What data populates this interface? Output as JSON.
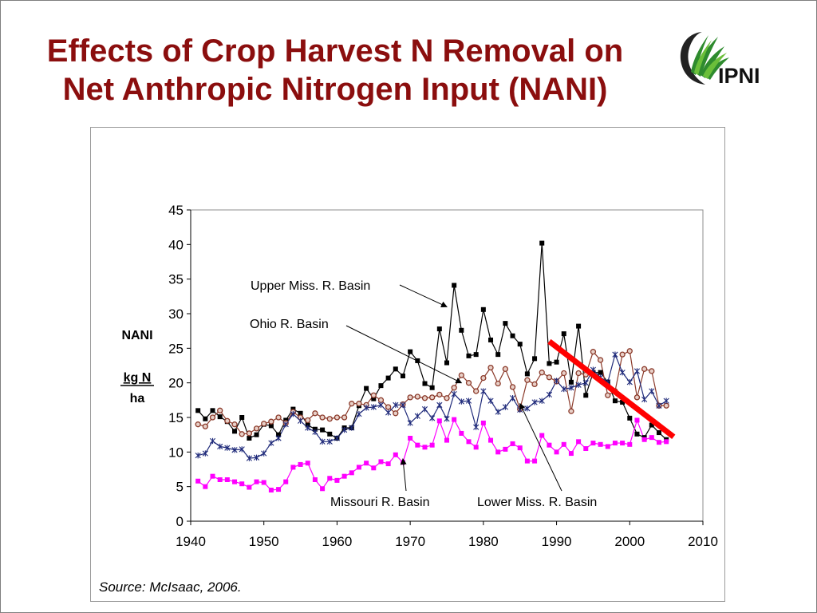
{
  "slide": {
    "title_line1": "Effects of Crop Harvest N Removal on",
    "title_line2": "Net Anthropic Nitrogen Input (NANI)",
    "logo_text": "IPNI",
    "source": "Source: McIsaac, 2006."
  },
  "colors": {
    "title": "#8b0e0e",
    "upper_miss": "#000000",
    "ohio": "#8b3a2a",
    "lower_miss": "#1f2a7a",
    "missouri": "#ff00ff",
    "trend": "#ff0000",
    "logo_green": "#2e8b2e"
  },
  "chart_data": {
    "type": "line",
    "ylabel_line1": "NANI",
    "ylabel_line2": "kg N",
    "ylabel_line3": "ha",
    "xlim": [
      1940,
      2010
    ],
    "ylim": [
      0,
      45
    ],
    "xticks": [
      1940,
      1950,
      1960,
      1970,
      1980,
      1990,
      2000,
      2010
    ],
    "yticks": [
      0,
      5,
      10,
      15,
      20,
      25,
      30,
      35,
      40,
      45
    ],
    "grid": false,
    "x": [
      1941,
      1942,
      1943,
      1944,
      1945,
      1946,
      1947,
      1948,
      1949,
      1950,
      1951,
      1952,
      1953,
      1954,
      1955,
      1956,
      1957,
      1958,
      1959,
      1960,
      1961,
      1962,
      1963,
      1964,
      1965,
      1966,
      1967,
      1968,
      1969,
      1970,
      1971,
      1972,
      1973,
      1974,
      1975,
      1976,
      1977,
      1978,
      1979,
      1980,
      1981,
      1982,
      1983,
      1984,
      1985,
      1986,
      1987,
      1988,
      1989,
      1990,
      1991,
      1992,
      1993,
      1994,
      1995,
      1996,
      1997,
      1998,
      1999,
      2000,
      2001,
      2002,
      2003,
      2004,
      2005
    ],
    "series": [
      {
        "name": "Upper Miss. R. Basin",
        "marker": "square",
        "values": [
          16,
          14.8,
          16,
          15.1,
          14.4,
          13,
          15,
          12,
          12.5,
          14,
          13.8,
          12.5,
          14.6,
          16.2,
          15.6,
          13.9,
          13.3,
          13.2,
          12.6,
          12,
          13.5,
          13.5,
          16.7,
          19.2,
          17.7,
          19.6,
          20.7,
          22,
          21,
          24.5,
          23.2,
          19.9,
          19.3,
          27.8,
          22.9,
          34.1,
          27.6,
          23.9,
          24.1,
          30.6,
          26.2,
          24.1,
          28.6,
          26.8,
          25.6,
          21.3,
          23.5,
          40.2,
          22.8,
          23,
          27.1,
          20.1,
          28.2,
          18.2,
          21.5,
          21.5,
          20.1,
          17.4,
          17.2,
          14.9,
          12.6,
          12.1,
          13.9,
          12.8,
          11.8
        ]
      },
      {
        "name": "Ohio R. Basin",
        "marker": "circle",
        "values": [
          14,
          13.7,
          15,
          16,
          14.5,
          14,
          12.6,
          12.7,
          13.4,
          14.1,
          14.4,
          15,
          14.2,
          15.8,
          15,
          14.6,
          15.6,
          15,
          14.8,
          15,
          15,
          17,
          17,
          16.8,
          18.2,
          17.5,
          16.5,
          15.6,
          16.9,
          17.9,
          18,
          17.8,
          17.9,
          18.3,
          17.8,
          19.3,
          21.1,
          20,
          18.8,
          20.7,
          22.2,
          19.9,
          22,
          19.4,
          16.2,
          20.4,
          19.8,
          21.5,
          20.8,
          20.2,
          21.4,
          15.9,
          21.4,
          21.2,
          24.5,
          23.3,
          18.2,
          18.8,
          24.1,
          24.6,
          17.9,
          22,
          21.7,
          16.7,
          16.7
        ]
      },
      {
        "name": "Lower Miss. R. Basin",
        "marker": "star",
        "values": [
          9.5,
          9.8,
          11.6,
          10.8,
          10.6,
          10.3,
          10.4,
          9.1,
          9.2,
          9.8,
          11.3,
          12,
          14,
          15.5,
          14.5,
          13.5,
          12.9,
          11.5,
          11.5,
          12,
          13.2,
          13.5,
          15.5,
          16.4,
          16.5,
          16.8,
          15.7,
          16.8,
          16.8,
          14.2,
          15.2,
          16.2,
          14.9,
          16.8,
          14.8,
          18.4,
          17.3,
          17.4,
          13.6,
          18.8,
          17.4,
          15.8,
          16.5,
          17.8,
          16.1,
          16.3,
          17.2,
          17.4,
          18.3,
          20.3,
          19.1,
          19.3,
          19.7,
          20,
          21.9,
          20.8,
          20.1,
          24.1,
          21.5,
          20.1,
          21.7,
          17.6,
          18.8,
          16.7,
          17.4
        ]
      },
      {
        "name": "Missouri R. Basin",
        "marker": "square",
        "values": [
          5.8,
          5,
          6.5,
          6,
          6,
          5.7,
          5.4,
          4.9,
          5.7,
          5.6,
          4.5,
          4.6,
          5.7,
          7.8,
          8.2,
          8.4,
          6,
          4.7,
          6.2,
          5.9,
          6.5,
          7,
          7.8,
          8.4,
          7.7,
          8.6,
          8.3,
          9.6,
          8.5,
          12,
          11,
          10.7,
          11,
          14.5,
          11.7,
          14.7,
          12.7,
          11.5,
          10.7,
          14.2,
          11.7,
          10,
          10.4,
          11.2,
          10.6,
          8.7,
          8.7,
          12.4,
          11,
          10,
          11.1,
          9.8,
          11.5,
          10.5,
          11.3,
          11.1,
          10.8,
          11.3,
          11.3,
          11.1,
          14.6,
          11.8,
          12.1,
          11.4,
          11.5
        ]
      }
    ],
    "annotations": [
      {
        "text": "Upper Miss. R. Basin",
        "points_to_x": 1975,
        "points_to_y": 31
      },
      {
        "text": "Ohio R. Basin",
        "points_to_x": 1977,
        "points_to_y": 20
      },
      {
        "text": "Missouri R. Basin",
        "points_to_x": 1969,
        "points_to_y": 9
      },
      {
        "text": "Lower Miss. R. Basin",
        "points_to_x": 1985,
        "points_to_y": 17
      }
    ],
    "trend_line": {
      "x": [
        1989,
        2006
      ],
      "y": [
        26,
        12.2
      ]
    }
  }
}
